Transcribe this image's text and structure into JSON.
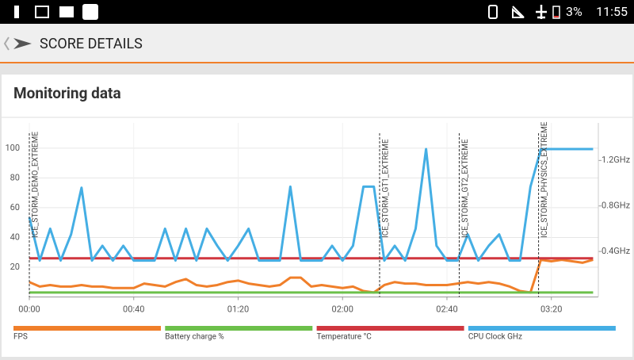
{
  "status_bar": {
    "battery": "3%",
    "time": "11:55"
  },
  "header": {
    "title": "SCORE DETAILS"
  },
  "card": {
    "title": "Monitoring data"
  },
  "chart_data": {
    "type": "line",
    "x": [
      0,
      4,
      8,
      12,
      16,
      20,
      24,
      28,
      32,
      36,
      40,
      44,
      48,
      52,
      56,
      60,
      64,
      68,
      72,
      76,
      80,
      84,
      88,
      92,
      96,
      100,
      104,
      108,
      112,
      116,
      120,
      124,
      128,
      132,
      136,
      140,
      144,
      148,
      152,
      156,
      160,
      164,
      168,
      172,
      176,
      180,
      184,
      188,
      192,
      196,
      200,
      204,
      208,
      212,
      216
    ],
    "xlim": [
      0,
      218
    ],
    "xticks": [
      {
        "value": 0,
        "label": "00:00"
      },
      {
        "value": 40,
        "label": "00:40"
      },
      {
        "value": 80,
        "label": "01:20"
      },
      {
        "value": 120,
        "label": "02:00"
      },
      {
        "value": 160,
        "label": "02:40"
      },
      {
        "value": 200,
        "label": "03:20"
      }
    ],
    "ylim": [
      0,
      117
    ],
    "yticks": [
      20,
      40,
      60,
      80,
      100
    ],
    "y2lim": [
      0,
      1.53
    ],
    "y2ticks": [
      {
        "value": 0.4,
        "label": "0.4GHz"
      },
      {
        "value": 0.8,
        "label": "0.8GHz"
      },
      {
        "value": 1.2,
        "label": "1.2GHz"
      }
    ],
    "grid": true,
    "markers": [
      {
        "x": 0,
        "label": "ICE_STORM_DEMO_EXTREME"
      },
      {
        "x": 134.2,
        "label": "ICE_STORM_GT1_EXTREME"
      },
      {
        "x": 164.7,
        "label": "ICE_STORM_GT2_EXTREME"
      },
      {
        "x": 195.1,
        "label": "ICE_STORM_PHYSICS_EXTREME"
      }
    ],
    "series": [
      {
        "name": "FPS",
        "color": "#f07f2a",
        "values": [
          10,
          7,
          8,
          7,
          7,
          8,
          7,
          7,
          6,
          6,
          6,
          9,
          8,
          7,
          10,
          12,
          8,
          7,
          8,
          10,
          11,
          9,
          8,
          7,
          8,
          13,
          13,
          7,
          8,
          7,
          6,
          7,
          4,
          3,
          8,
          10,
          9,
          9,
          8,
          8,
          8,
          9,
          10,
          9,
          10,
          9,
          7,
          4,
          3,
          25,
          24,
          25,
          24,
          23,
          25
        ]
      },
      {
        "name": "Battery charge %",
        "color": "#6cc04a",
        "values": [
          3,
          3,
          3,
          3,
          3,
          3,
          3,
          3,
          3,
          3,
          3,
          3,
          3,
          3,
          3,
          3,
          3,
          3,
          3,
          3,
          3,
          3,
          3,
          3,
          3,
          3,
          3,
          3,
          3,
          3,
          3,
          3,
          3,
          3,
          3,
          3,
          3,
          3,
          3,
          3,
          3,
          3,
          3,
          3,
          3,
          3,
          3,
          3,
          3,
          3,
          3,
          3,
          3,
          3,
          3
        ]
      },
      {
        "name": "Temperature °C",
        "color": "#d0373f",
        "values": [
          26,
          26,
          26,
          26,
          26,
          26,
          26,
          26,
          26,
          26,
          26,
          26,
          26,
          26,
          26,
          26,
          26,
          26,
          26,
          26,
          26,
          26,
          26,
          26,
          26,
          26,
          26,
          26,
          26,
          26,
          26,
          26,
          26,
          26,
          26,
          26,
          26,
          26,
          26,
          26,
          26,
          26,
          26,
          26,
          26,
          26,
          26,
          26,
          26,
          26,
          26,
          26,
          26,
          26,
          26
        ]
      },
      {
        "name": "CPU Clock GHz",
        "color": "#44aee4",
        "axis": "y2",
        "values": [
          0.7,
          0.32,
          0.6,
          0.32,
          0.55,
          0.96,
          0.32,
          0.45,
          0.32,
          0.45,
          0.32,
          0.32,
          0.32,
          0.6,
          0.32,
          0.6,
          0.32,
          0.6,
          0.45,
          0.32,
          0.45,
          0.6,
          0.32,
          0.32,
          0.32,
          0.97,
          0.32,
          0.32,
          0.32,
          0.45,
          0.32,
          0.45,
          0.97,
          0.97,
          0.32,
          0.45,
          0.32,
          0.6,
          1.3,
          0.45,
          0.32,
          0.32,
          0.55,
          0.32,
          0.45,
          0.55,
          0.32,
          0.32,
          0.97,
          1.3,
          1.3,
          1.3,
          1.3,
          1.3,
          1.3
        ]
      }
    ]
  }
}
